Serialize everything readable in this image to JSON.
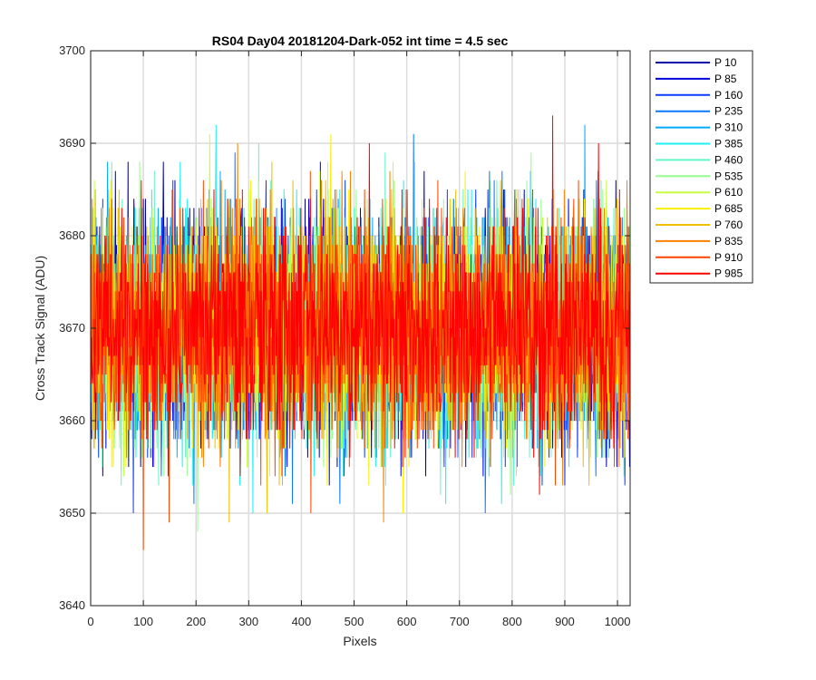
{
  "chart_data": {
    "type": "line",
    "title": "RS04 Day04 20181204-Dark-052 int time = 4.5 sec",
    "xlabel": "Pixels",
    "ylabel": "Cross Track Signal (ADU)",
    "xlim": [
      0,
      1024
    ],
    "ylim": [
      3640,
      3700
    ],
    "xticks": [
      0,
      100,
      200,
      300,
      400,
      500,
      600,
      700,
      800,
      900,
      1000
    ],
    "yticks": [
      3640,
      3650,
      3660,
      3670,
      3680,
      3690,
      3700
    ],
    "grid": true,
    "legend_position": "outside-right-top",
    "x_range": [
      1,
      1024
    ],
    "noise_mean": 3670,
    "noise_sigma": 8,
    "series": [
      {
        "name": "P 10",
        "color": "#0000AA"
      },
      {
        "name": "P 85",
        "color": "#0000DC"
      },
      {
        "name": "P 160",
        "color": "#0A3CFF"
      },
      {
        "name": "P 235",
        "color": "#0A78FF"
      },
      {
        "name": "P 310",
        "color": "#00AAFF"
      },
      {
        "name": "P 385",
        "color": "#1EF0F0"
      },
      {
        "name": "P 460",
        "color": "#64F5C8"
      },
      {
        "name": "P 535",
        "color": "#96FF8C"
      },
      {
        "name": "P 610",
        "color": "#C8FF3C"
      },
      {
        "name": "P 685",
        "color": "#FAF000"
      },
      {
        "name": "P 760",
        "color": "#F0C000"
      },
      {
        "name": "P 835",
        "color": "#FF8000"
      },
      {
        "name": "P 910",
        "color": "#FF4600"
      },
      {
        "name": "P 985",
        "color": "#FF0000"
      }
    ]
  }
}
